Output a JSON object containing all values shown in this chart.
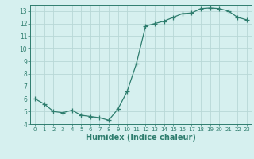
{
  "x": [
    0,
    1,
    2,
    3,
    4,
    5,
    6,
    7,
    8,
    9,
    10,
    11,
    12,
    13,
    14,
    15,
    16,
    17,
    18,
    19,
    20,
    21,
    22,
    23
  ],
  "y": [
    6.0,
    5.6,
    5.0,
    4.9,
    5.1,
    4.7,
    4.6,
    4.5,
    4.3,
    5.2,
    6.6,
    8.8,
    11.8,
    12.0,
    12.2,
    12.5,
    12.8,
    12.85,
    13.2,
    13.25,
    13.2,
    13.0,
    12.5,
    12.3
  ],
  "line_color": "#2e7d6e",
  "marker": "+",
  "marker_size": 4,
  "bg_color": "#d6f0ef",
  "grid_color": "#b8d8d6",
  "axis_color": "#2e7d6e",
  "tick_color": "#2e7d6e",
  "xlabel": "Humidex (Indice chaleur)",
  "xlabel_fontsize": 7,
  "ylim": [
    4,
    13.5
  ],
  "xlim": [
    -0.5,
    23.5
  ],
  "yticks": [
    4,
    5,
    6,
    7,
    8,
    9,
    10,
    11,
    12,
    13
  ],
  "xticks": [
    0,
    1,
    2,
    3,
    4,
    5,
    6,
    7,
    8,
    9,
    10,
    11,
    12,
    13,
    14,
    15,
    16,
    17,
    18,
    19,
    20,
    21,
    22,
    23
  ]
}
